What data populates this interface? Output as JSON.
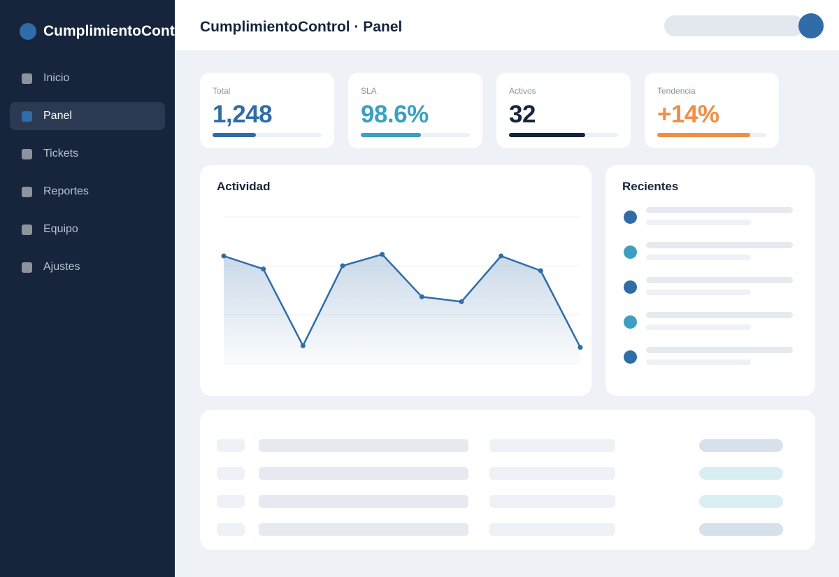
{
  "app": {
    "brand_name": "CumplimientoControl",
    "brand_color": "#2f6ca8",
    "page_title": "CumplimientoControl · Panel"
  },
  "sidebar": {
    "active": "Panel",
    "items": [
      {
        "label": "Inicio",
        "icon": "square-icon"
      },
      {
        "label": "Panel",
        "icon": "square-icon"
      },
      {
        "label": "Tickets",
        "icon": "square-icon"
      },
      {
        "label": "Reportes",
        "icon": "square-icon"
      },
      {
        "label": "Equipo",
        "icon": "square-icon"
      },
      {
        "label": "Ajustes",
        "icon": "square-icon"
      }
    ]
  },
  "header": {
    "search_placeholder": "",
    "avatar_color": "#2f6ca8"
  },
  "kpis": [
    {
      "label": "Total",
      "value": "1,248",
      "color": "#2f6ca8",
      "progress": 0.4
    },
    {
      "label": "SLA",
      "value": "98.6%",
      "color": "#3ba0c2",
      "progress": 0.55
    },
    {
      "label": "Activos",
      "value": "32",
      "color": "#16253c",
      "progress": 0.7
    },
    {
      "label": "Tendencia",
      "value": "+14%",
      "color": "#f08e44",
      "progress": 0.85
    }
  ],
  "activity": {
    "title": "Actividad",
    "line_color": "#2f6ca8",
    "chart_data": {
      "type": "area",
      "x": [
        1,
        2,
        3,
        4,
        5,
        6,
        7,
        8,
        9,
        10
      ],
      "values": [
        66,
        58,
        11,
        60,
        67,
        41,
        38,
        66,
        57,
        10
      ],
      "ylim": [
        0,
        90
      ],
      "grid": true
    }
  },
  "recent": {
    "title": "Recientes",
    "items": [
      {
        "color": "#2f6ca8"
      },
      {
        "color": "#3ba0c2"
      },
      {
        "color": "#2f6ca8"
      },
      {
        "color": "#3ba0c2"
      },
      {
        "color": "#2f6ca8"
      }
    ]
  },
  "table": {
    "rows": [
      {
        "badge_color": "#d7e1ec"
      },
      {
        "badge_color": "#d9eef3"
      },
      {
        "badge_color": "#d9eef3"
      },
      {
        "badge_color": "#d7e1ec"
      }
    ]
  }
}
